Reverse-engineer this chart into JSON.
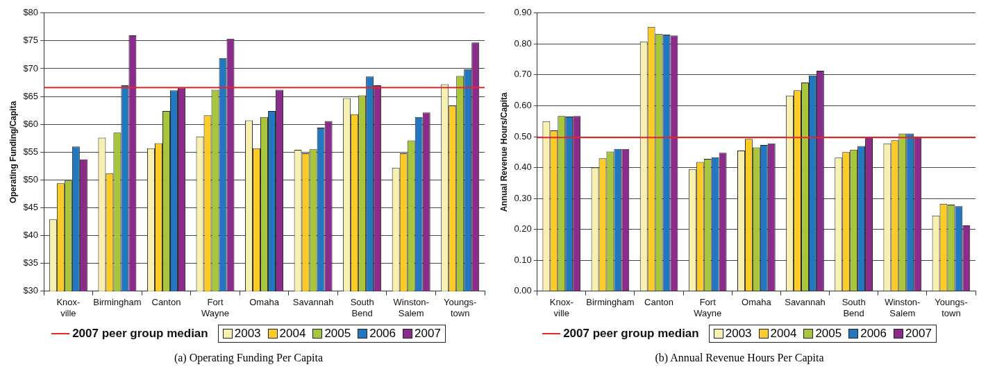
{
  "chart_data": [
    {
      "type": "bar",
      "ylabel": "Operating Funding/Capita",
      "categories": [
        "Knox-\nville",
        "Birmingham",
        "Canton",
        "Fort\nWayne",
        "Omaha",
        "Savannah",
        "South\nBend",
        "Winston-\nSalem",
        "Youngs-\ntown"
      ],
      "series": [
        {
          "name": "2003",
          "color": "#f8f0b0",
          "values": [
            42.9,
            57.6,
            55.7,
            57.8,
            60.7,
            55.4,
            64.7,
            52.2,
            67.2
          ]
        },
        {
          "name": "2004",
          "color": "#fccb26",
          "values": [
            49.4,
            51.2,
            56.6,
            61.6,
            55.7,
            54.8,
            61.8,
            54.8,
            63.4
          ]
        },
        {
          "name": "2005",
          "color": "#a8c63c",
          "values": [
            49.9,
            58.5,
            62.4,
            66.2,
            61.3,
            55.5,
            65.2,
            57.1,
            68.7
          ]
        },
        {
          "name": "2006",
          "color": "#2277c0",
          "values": [
            56,
            67,
            66.1,
            71.9,
            62.4,
            59.4,
            68.6,
            61.3,
            69.9
          ]
        },
        {
          "name": "2007",
          "color": "#8b2c8b",
          "values": [
            53.7,
            76,
            66.6,
            75.4,
            66.2,
            60.6,
            67,
            62.1,
            74.7
          ]
        }
      ],
      "ylim": [
        30,
        80
      ],
      "yticks": [
        {
          "value": 30,
          "label": "$30"
        },
        {
          "value": 35,
          "label": "$35"
        },
        {
          "value": 40,
          "label": "$40"
        },
        {
          "value": 45,
          "label": "$45"
        },
        {
          "value": 50,
          "label": "$50"
        },
        {
          "value": 55,
          "label": "$55"
        },
        {
          "value": 60,
          "label": "$60"
        },
        {
          "value": 65,
          "label": "$65"
        },
        {
          "value": 70,
          "label": "$70"
        },
        {
          "value": 75,
          "label": "$75"
        },
        {
          "value": 80,
          "label": "$80"
        }
      ],
      "ref_lines": [
        {
          "axis": "y",
          "value": 66.6,
          "label": "2007 peer group median",
          "color": "#e8262a"
        }
      ],
      "grid": "y",
      "legend": "bottom",
      "annotations": [
        "(a) Operating Funding Per Capita"
      ]
    },
    {
      "type": "bar",
      "ylabel": "Annual Revenue Hours/Capita",
      "categories": [
        "Knox-\nville",
        "Birmingham",
        "Canton",
        "Fort\nWayne",
        "Omaha",
        "Savannah",
        "South\nBend",
        "Winston-\nSalem",
        "Youngs-\ntown"
      ],
      "series": [
        {
          "name": "2003",
          "color": "#f8f0b0",
          "values": [
            0.55,
            0.4,
            0.808,
            0.395,
            0.455,
            0.633,
            0.432,
            0.478,
            0.245
          ]
        },
        {
          "name": "2004",
          "color": "#fccb26",
          "values": [
            0.52,
            0.43,
            0.855,
            0.418,
            0.493,
            0.65,
            0.45,
            0.488,
            0.283
          ]
        },
        {
          "name": "2005",
          "color": "#a8c63c",
          "values": [
            0.567,
            0.452,
            0.833,
            0.428,
            0.465,
            0.675,
            0.458,
            0.51,
            0.28
          ]
        },
        {
          "name": "2006",
          "color": "#2277c0",
          "values": [
            0.565,
            0.46,
            0.83,
            0.433,
            0.473,
            0.698,
            0.47,
            0.51,
            0.275
          ]
        },
        {
          "name": "2007",
          "color": "#8b2c8b",
          "values": [
            0.567,
            0.46,
            0.827,
            0.448,
            0.478,
            0.713,
            0.498,
            0.5,
            0.213
          ]
        }
      ],
      "ylim": [
        0,
        0.9
      ],
      "yticks": [
        {
          "value": 0,
          "label": "0.00"
        },
        {
          "value": 0.1,
          "label": "0.10"
        },
        {
          "value": 0.2,
          "label": "0.20"
        },
        {
          "value": 0.3,
          "label": "0.30"
        },
        {
          "value": 0.4,
          "label": "0.40"
        },
        {
          "value": 0.5,
          "label": "0.50"
        },
        {
          "value": 0.6,
          "label": "0.60"
        },
        {
          "value": 0.7,
          "label": "0.70"
        },
        {
          "value": 0.8,
          "label": "0.80"
        },
        {
          "value": 0.9,
          "label": "0.90"
        }
      ],
      "ref_lines": [
        {
          "axis": "y",
          "value": 0.497,
          "label": "2007 peer group median",
          "color": "#e8262a"
        }
      ],
      "grid": "y",
      "legend": "bottom",
      "annotations": [
        "(b) Annual Revenue Hours Per Capita"
      ]
    }
  ]
}
